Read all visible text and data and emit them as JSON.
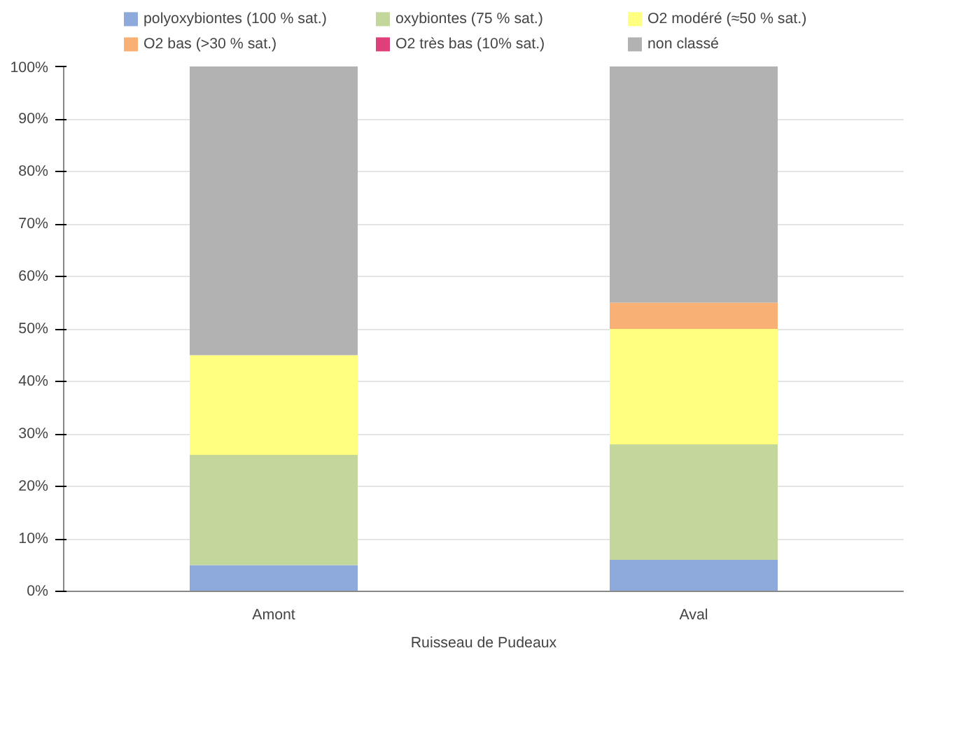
{
  "chart_data": {
    "type": "bar",
    "stacked": true,
    "xlabel": "Ruisseau de Pudeaux",
    "categories": [
      "Amont",
      "Aval"
    ],
    "series": [
      {
        "name": "polyoxybiontes (100 % sat.)",
        "color": "#8eaadc",
        "values": [
          5,
          6
        ]
      },
      {
        "name": "oxybiontes (75 % sat.)",
        "color": "#c3d69b",
        "values": [
          21,
          22
        ]
      },
      {
        "name": "O2 modéré (≈50 % sat.)",
        "color": "#ffff80",
        "values": [
          19,
          22
        ]
      },
      {
        "name": "O2 bas (>30 % sat.)",
        "color": "#f9b074",
        "values": [
          0,
          5
        ]
      },
      {
        "name": "O2 très bas (10% sat.)",
        "color": "#e0407a",
        "values": [
          0,
          0
        ]
      },
      {
        "name": "non classé",
        "color": "#b2b2b2",
        "values": [
          55,
          45
        ]
      }
    ],
    "ylim": [
      0,
      100
    ],
    "yticks": [
      {
        "value": 0,
        "label": "0%"
      },
      {
        "value": 10,
        "label": "10%"
      },
      {
        "value": 20,
        "label": "20%"
      },
      {
        "value": 30,
        "label": "30%"
      },
      {
        "value": 40,
        "label": "40%"
      },
      {
        "value": 50,
        "label": "50%"
      },
      {
        "value": 60,
        "label": "60%"
      },
      {
        "value": 70,
        "label": "70%"
      },
      {
        "value": 80,
        "label": "80%"
      },
      {
        "value": 90,
        "label": "90%"
      },
      {
        "value": 100,
        "label": "100%"
      }
    ],
    "grid": "y",
    "legend": "top"
  }
}
